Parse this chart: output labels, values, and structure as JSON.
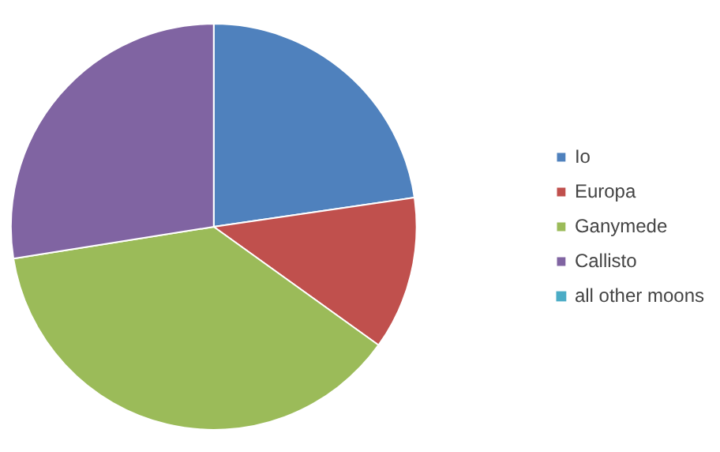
{
  "chart_data": {
    "type": "pie",
    "categories": [
      "Io",
      "Europa",
      "Ganymede",
      "Callisto",
      "all other moons"
    ],
    "values": [
      22.7,
      12.2,
      37.6,
      27.5,
      0.0
    ],
    "colors": [
      "#4f81bd",
      "#c0504d",
      "#9bbb59",
      "#8064a2",
      "#4bacc6"
    ],
    "legend": "right"
  }
}
